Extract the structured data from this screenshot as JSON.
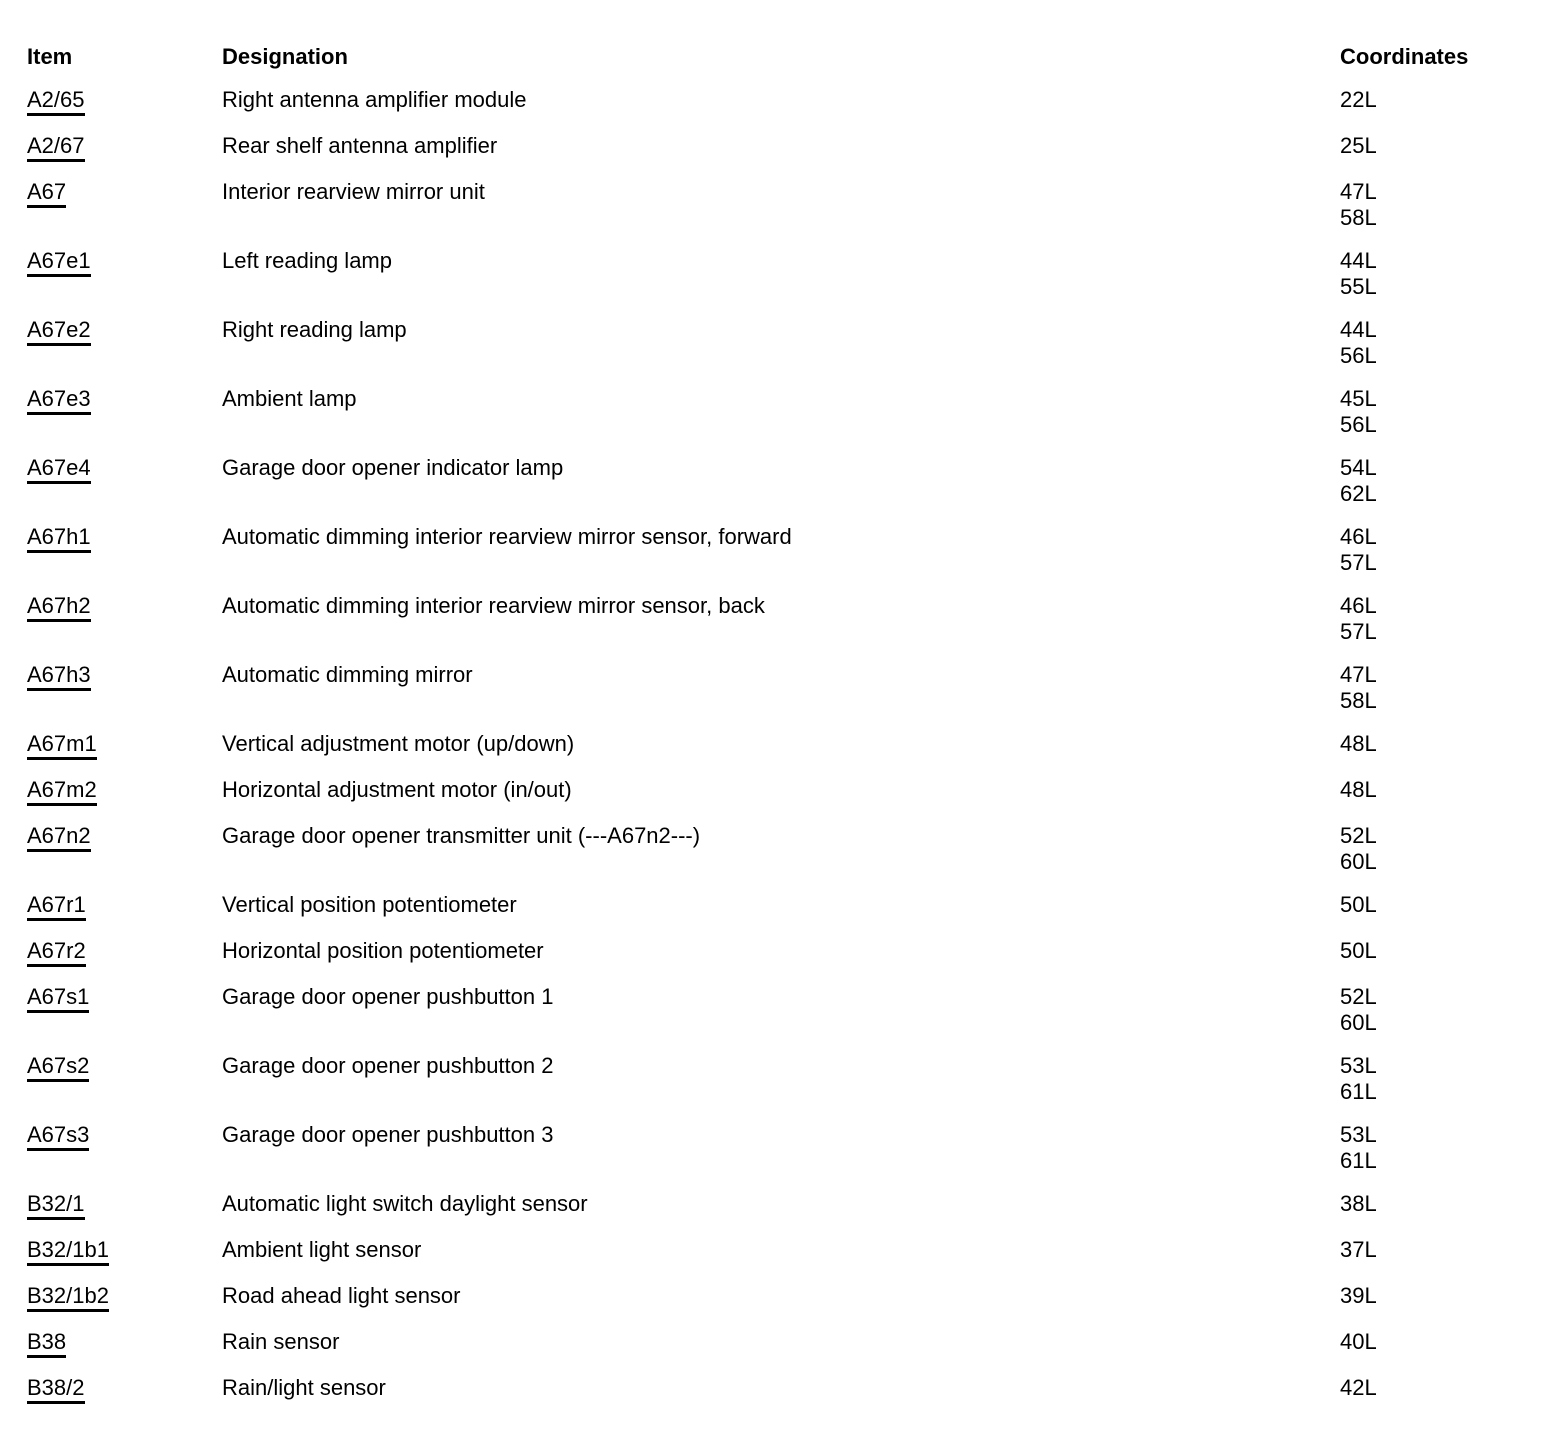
{
  "colors": {
    "text": "#000000",
    "background": "#ffffff",
    "link_underline": "#000000"
  },
  "table": {
    "columns": [
      {
        "label": "Item"
      },
      {
        "label": "Designation"
      },
      {
        "label": "Coordinates"
      }
    ],
    "rows": [
      {
        "item": "A2/65",
        "designation": "Right antenna amplifier module",
        "coordinates": [
          "22L"
        ]
      },
      {
        "item": "A2/67",
        "designation": "Rear shelf antenna amplifier",
        "coordinates": [
          "25L"
        ]
      },
      {
        "item": "A67",
        "designation": "Interior rearview mirror unit",
        "coordinates": [
          "47L",
          "58L"
        ]
      },
      {
        "item": "A67e1",
        "designation": "Left reading lamp",
        "coordinates": [
          "44L",
          "55L"
        ]
      },
      {
        "item": "A67e2",
        "designation": "Right reading lamp",
        "coordinates": [
          "44L",
          "56L"
        ]
      },
      {
        "item": "A67e3",
        "designation": "Ambient lamp",
        "coordinates": [
          "45L",
          "56L"
        ]
      },
      {
        "item": "A67e4",
        "designation": "Garage door opener indicator lamp",
        "coordinates": [
          "54L",
          "62L"
        ]
      },
      {
        "item": "A67h1",
        "designation": "Automatic dimming interior rearview mirror sensor, forward",
        "coordinates": [
          "46L",
          "57L"
        ]
      },
      {
        "item": "A67h2",
        "designation": "Automatic dimming interior rearview mirror sensor, back",
        "coordinates": [
          "46L",
          "57L"
        ]
      },
      {
        "item": "A67h3",
        "designation": "Automatic dimming mirror",
        "coordinates": [
          "47L",
          "58L"
        ]
      },
      {
        "item": "A67m1",
        "designation": "Vertical adjustment motor (up/down)",
        "coordinates": [
          "48L"
        ]
      },
      {
        "item": "A67m2",
        "designation": "Horizontal adjustment motor (in/out)",
        "coordinates": [
          "48L"
        ]
      },
      {
        "item": "A67n2",
        "designation": "Garage door opener transmitter unit (---A67n2---)",
        "coordinates": [
          "52L",
          "60L"
        ]
      },
      {
        "item": "A67r1",
        "designation": "Vertical position potentiometer",
        "coordinates": [
          "50L"
        ]
      },
      {
        "item": "A67r2",
        "designation": "Horizontal position potentiometer",
        "coordinates": [
          "50L"
        ]
      },
      {
        "item": "A67s1",
        "designation": "Garage door opener pushbutton 1",
        "coordinates": [
          "52L",
          "60L"
        ]
      },
      {
        "item": "A67s2",
        "designation": "Garage door opener pushbutton 2",
        "coordinates": [
          "53L",
          "61L"
        ]
      },
      {
        "item": "A67s3",
        "designation": "Garage door opener pushbutton 3",
        "coordinates": [
          "53L",
          "61L"
        ]
      },
      {
        "item": "B32/1",
        "designation": "Automatic light switch daylight sensor",
        "coordinates": [
          "38L"
        ]
      },
      {
        "item": "B32/1b1",
        "designation": "Ambient light sensor",
        "coordinates": [
          "37L"
        ]
      },
      {
        "item": "B32/1b2",
        "designation": "Road ahead light sensor",
        "coordinates": [
          "39L"
        ]
      },
      {
        "item": "B38",
        "designation": "Rain sensor",
        "coordinates": [
          "40L"
        ]
      },
      {
        "item": "B38/2",
        "designation": "Rain/light sensor",
        "coordinates": [
          "42L"
        ]
      }
    ]
  }
}
